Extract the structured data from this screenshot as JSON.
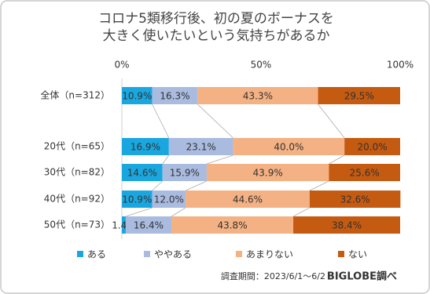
{
  "chart_data": {
    "type": "stacked-bar-horizontal",
    "title": [
      "コロナ5類移行後、初の夏のボーナスを",
      "大きく使いたいという気持ちがあるか"
    ],
    "categories": [
      "全体（n=312）",
      "20代（n=65）",
      "30代（n=82）",
      "40代（n=92）",
      "50代（n=73）"
    ],
    "xlim": [
      0,
      100
    ],
    "xticks": [
      {
        "value": 0,
        "label": "0%"
      },
      {
        "value": 50,
        "label": "50%"
      },
      {
        "value": 100,
        "label": "100%"
      }
    ],
    "series": [
      {
        "name": "ある",
        "color": "#1aa7e0",
        "values": [
          10.9,
          16.9,
          14.6,
          10.9,
          1.4
        ],
        "value_labels": [
          "10.9%",
          "16.9%",
          "14.6%",
          "10.9%",
          "1.4%"
        ]
      },
      {
        "name": "ややある",
        "color": "#aabbe0",
        "values": [
          16.3,
          23.1,
          15.9,
          12.0,
          16.4
        ],
        "value_labels": [
          "16.3%",
          "23.1%",
          "15.9%",
          "12.0%",
          "16.4%"
        ]
      },
      {
        "name": "あまりない",
        "color": "#f4b183",
        "values": [
          43.3,
          40.0,
          43.9,
          44.6,
          43.8
        ],
        "value_labels": [
          "43.3%",
          "40.0%",
          "43.9%",
          "44.6%",
          "43.8%"
        ]
      },
      {
        "name": "ない",
        "color": "#c55a11",
        "values": [
          29.5,
          20.0,
          25.6,
          32.6,
          38.4
        ],
        "value_labels": [
          "29.5%",
          "20.0%",
          "25.6%",
          "32.6%",
          "38.4%"
        ]
      }
    ],
    "footnote": "調査期間：2023/6/1～6/2",
    "source": "BIGLOBE調べ"
  }
}
